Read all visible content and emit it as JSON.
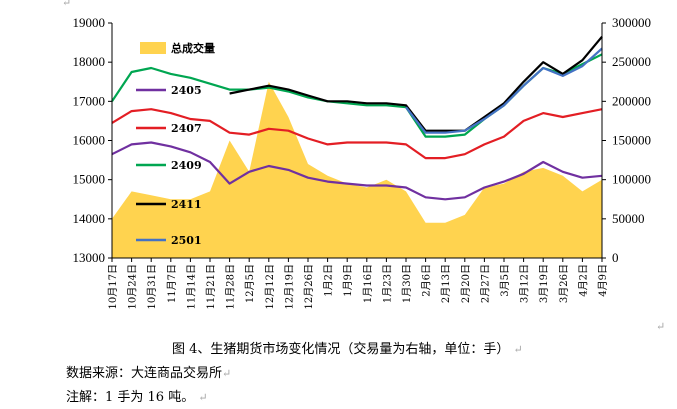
{
  "chart_data": {
    "type": "line",
    "categories": [
      "10月17日",
      "10月24日",
      "10月31日",
      "11月7日",
      "11月14日",
      "11月21日",
      "11月28日",
      "12月5日",
      "12月12日",
      "12月19日",
      "12月26日",
      "1月2日",
      "1月9日",
      "1月16日",
      "1月23日",
      "1月30日",
      "2月6日",
      "2月13日",
      "2月20日",
      "2月27日",
      "3月5日",
      "3月12日",
      "3月19日",
      "3月26日",
      "4月2日",
      "4月9日"
    ],
    "ylim_left": [
      13000,
      19000
    ],
    "yticks_left": [
      "13000",
      "14000",
      "15000",
      "16000",
      "17000",
      "18000",
      "19000"
    ],
    "ylim_right": [
      0,
      300000
    ],
    "yticks_right": [
      "0",
      "50000",
      "100000",
      "150000",
      "200000",
      "250000",
      "300000"
    ],
    "series": [
      {
        "name": "总成交量",
        "type": "area",
        "axis": "right",
        "color": "#ffd34f",
        "values": [
          50000,
          85000,
          80000,
          75000,
          75000,
          85000,
          150000,
          110000,
          225000,
          180000,
          120000,
          105000,
          95000,
          90000,
          100000,
          85000,
          45000,
          45000,
          55000,
          90000,
          95000,
          110000,
          115000,
          105000,
          85000,
          100000
        ]
      },
      {
        "name": "2405",
        "type": "line",
        "axis": "left",
        "color": "#7030a0",
        "values": [
          15650,
          15900,
          15950,
          15850,
          15700,
          15450,
          14900,
          15200,
          15350,
          15250,
          15050,
          14950,
          14900,
          14850,
          14850,
          14800,
          14550,
          14500,
          14550,
          14800,
          14950,
          15150,
          15450,
          15200,
          15050,
          15100
        ]
      },
      {
        "name": "2407",
        "type": "line",
        "axis": "left",
        "color": "#e31e24",
        "values": [
          16450,
          16750,
          16800,
          16700,
          16550,
          16500,
          16200,
          16150,
          16300,
          16250,
          16050,
          15900,
          15950,
          15950,
          15950,
          15900,
          15550,
          15550,
          15650,
          15900,
          16100,
          16500,
          16700,
          16600,
          16700,
          16800
        ]
      },
      {
        "name": "2409",
        "type": "line",
        "axis": "left",
        "color": "#00a651",
        "values": [
          17000,
          17750,
          17850,
          17700,
          17600,
          17450,
          17300,
          17300,
          17350,
          17250,
          17100,
          17000,
          16950,
          16900,
          16900,
          16850,
          16100,
          16100,
          16150,
          16550,
          16900,
          17400,
          17850,
          17700,
          17950,
          18200
        ]
      },
      {
        "name": "2411",
        "type": "line",
        "axis": "left",
        "color": "#000000",
        "values": [
          null,
          null,
          null,
          null,
          null,
          null,
          17200,
          17300,
          17400,
          17300,
          17150,
          17000,
          17000,
          16950,
          16950,
          16900,
          16250,
          16250,
          16250,
          16600,
          16950,
          17500,
          18000,
          17700,
          18050,
          18650
        ]
      },
      {
        "name": "2501",
        "type": "line",
        "axis": "left",
        "color": "#4472c4",
        "values": [
          null,
          null,
          null,
          null,
          null,
          null,
          null,
          null,
          null,
          null,
          null,
          null,
          null,
          null,
          null,
          16850,
          16200,
          16200,
          16250,
          16550,
          16900,
          17400,
          17850,
          17650,
          17900,
          18350
        ]
      }
    ],
    "grid": false,
    "legend_position": "upper-left"
  },
  "caption": "图 4、生猪期货市场变化情况（交易量为右轴，单位：手）",
  "source": "数据来源：大连商品交易所",
  "note": "注解：1 手为 16 吨。",
  "paragraph_mark": "↵"
}
